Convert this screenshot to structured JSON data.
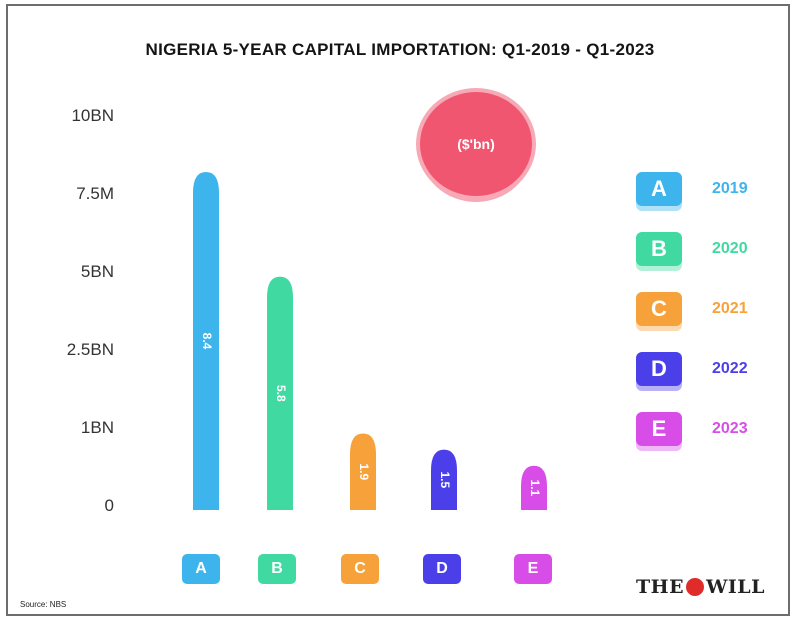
{
  "title": "NIGERIA 5-YEAR CAPITAL IMPORTATION: Q1-2019 - Q1-2023",
  "unit_label": "($'bn)",
  "source": "Source: NBS",
  "brand": {
    "left": "THE",
    "right": "WILL"
  },
  "y_ticks": [
    "10BN",
    "7.5M",
    "5BN",
    "2.5BN",
    "1BN",
    "0"
  ],
  "legend": [
    {
      "key": "A",
      "label": "2019",
      "color": "#3db4ec"
    },
    {
      "key": "B",
      "label": "2020",
      "color": "#40d9a2"
    },
    {
      "key": "C",
      "label": "2021",
      "color": "#f7a13a"
    },
    {
      "key": "D",
      "label": "2022",
      "color": "#4b3fe9"
    },
    {
      "key": "E",
      "label": "2023",
      "color": "#d84de8"
    }
  ],
  "chart_data": {
    "type": "bar",
    "title": "NIGERIA 5-YEAR CAPITAL IMPORTATION: Q1-2019 - Q1-2023",
    "categories": [
      "A",
      "B",
      "C",
      "D",
      "E"
    ],
    "series": [
      {
        "values": [
          8.4,
          5.8,
          1.9,
          1.5,
          1.1
        ],
        "labels": [
          "8.4",
          "5.8",
          "1.9",
          "1.5",
          "1.1"
        ]
      }
    ],
    "colors": [
      "#3db4ec",
      "#40d9a2",
      "#f7a13a",
      "#4b3fe9",
      "#d84de8"
    ],
    "y_tick_labels": [
      "10BN",
      "7.5M",
      "5BN",
      "2.5BN",
      "1BN",
      "0"
    ],
    "ylim": [
      0,
      10
    ],
    "grid": false,
    "legend_position": "right"
  }
}
